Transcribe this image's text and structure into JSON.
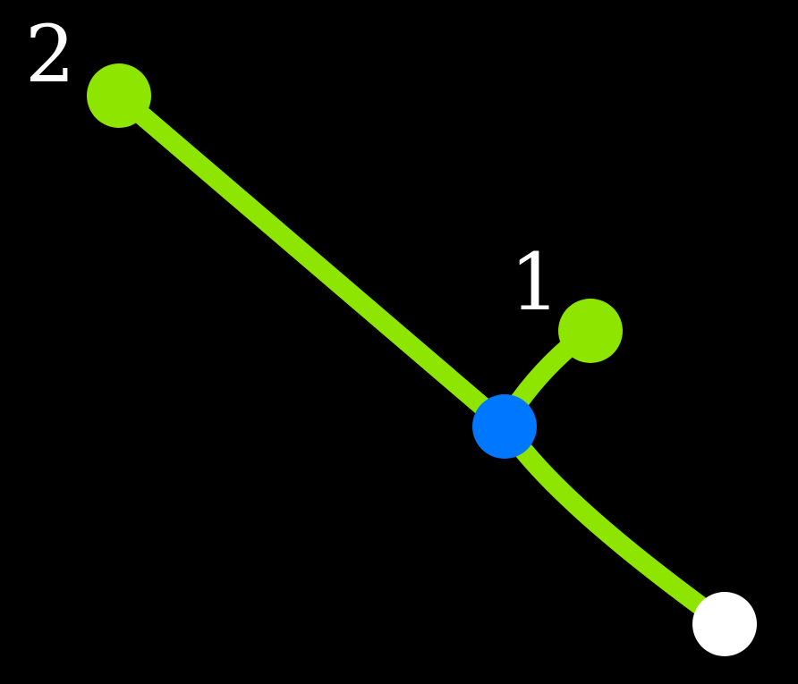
{
  "diagram": {
    "background": "#000000",
    "edge_color": "#8ee600",
    "nodes": [
      {
        "id": "node-2",
        "label": "2",
        "kind": "leaf",
        "color": "#8ee600"
      },
      {
        "id": "node-1",
        "label": "1",
        "kind": "leaf",
        "color": "#8ee600"
      },
      {
        "id": "junction",
        "label": "",
        "kind": "junction",
        "color": "#0077ff"
      },
      {
        "id": "root",
        "label": "",
        "kind": "root",
        "color": "#ffffff"
      }
    ],
    "edges": [
      {
        "from": "node-2",
        "to": "junction"
      },
      {
        "from": "node-1",
        "to": "junction"
      },
      {
        "from": "junction",
        "to": "root"
      }
    ]
  }
}
